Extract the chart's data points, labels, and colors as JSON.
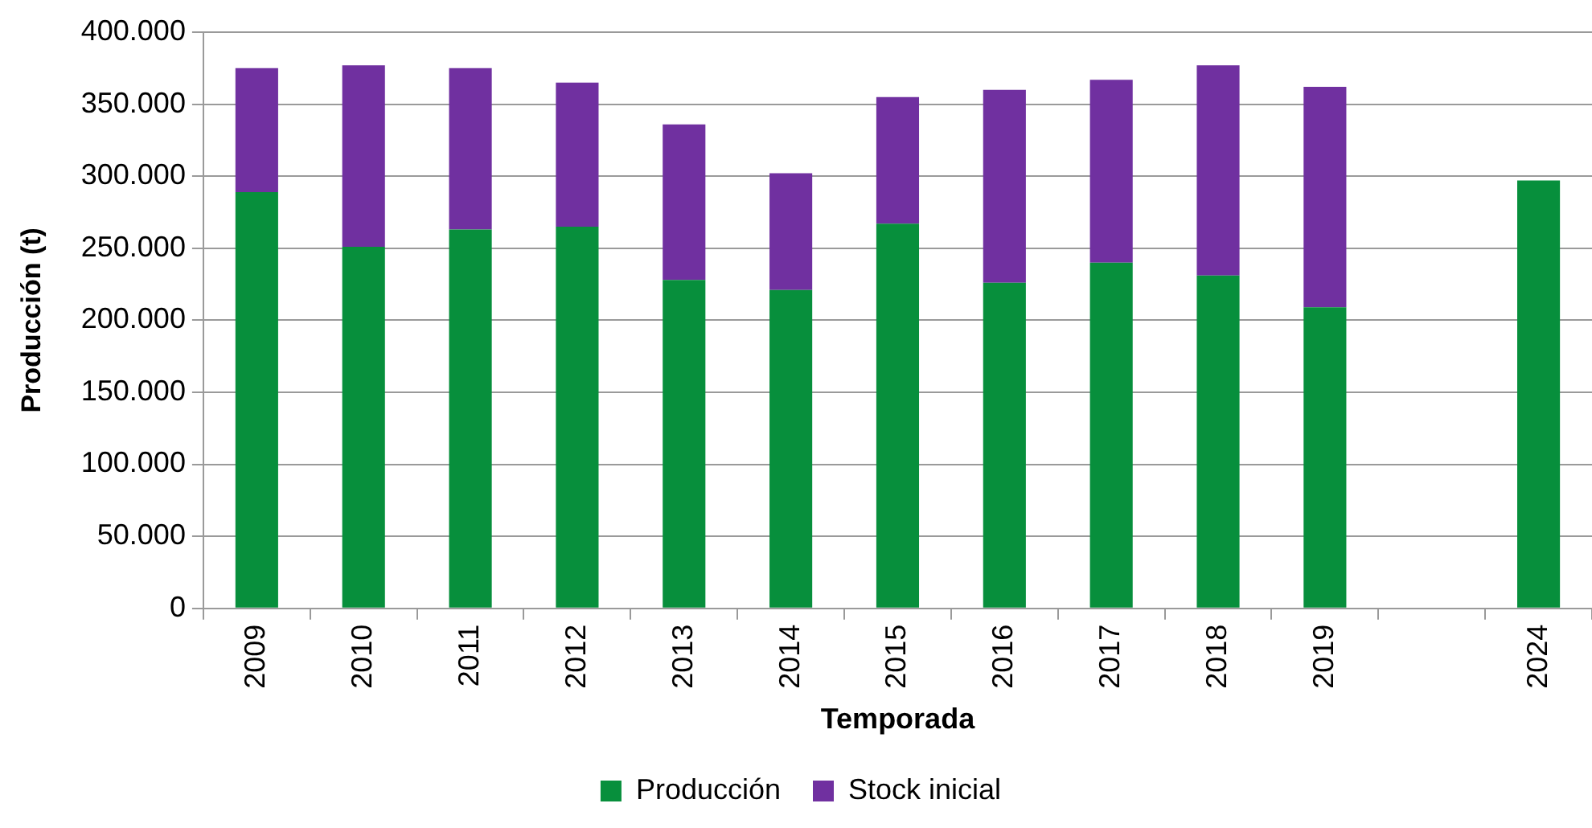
{
  "chart_data": {
    "type": "bar",
    "stacked": true,
    "xlabel": "Temporada",
    "ylabel": "Producción (t)",
    "categories": [
      "2009",
      "2010",
      "2011",
      "2012",
      "2013",
      "2014",
      "2015",
      "2016",
      "2017",
      "2018",
      "2019",
      null,
      "2024"
    ],
    "series": [
      {
        "name": "Producción",
        "color": "#078f3c",
        "values": [
          289000,
          251000,
          263000,
          265000,
          228000,
          221000,
          267000,
          226000,
          240000,
          231000,
          209000,
          null,
          297000
        ]
      },
      {
        "name": "Stock inicial",
        "color": "#7030a0",
        "values": [
          86000,
          126000,
          112000,
          100000,
          108000,
          81000,
          88000,
          134000,
          127000,
          146000,
          153000,
          null,
          null
        ]
      }
    ],
    "ylim": [
      0,
      400000
    ],
    "yticks": [
      0,
      {
        "value": 50000,
        "label": "50.000"
      },
      {
        "value": 100000,
        "label": "100.000"
      },
      {
        "value": 150000,
        "label": "150.000"
      },
      {
        "value": 200000,
        "label": "200.000"
      },
      {
        "value": 250000,
        "label": "250.000"
      },
      {
        "value": 300000,
        "label": "300.000"
      },
      {
        "value": 350000,
        "label": "350.000"
      },
      {
        "value": 400000,
        "label": "400.000"
      }
    ],
    "grid": "y",
    "legend": "bottom"
  }
}
